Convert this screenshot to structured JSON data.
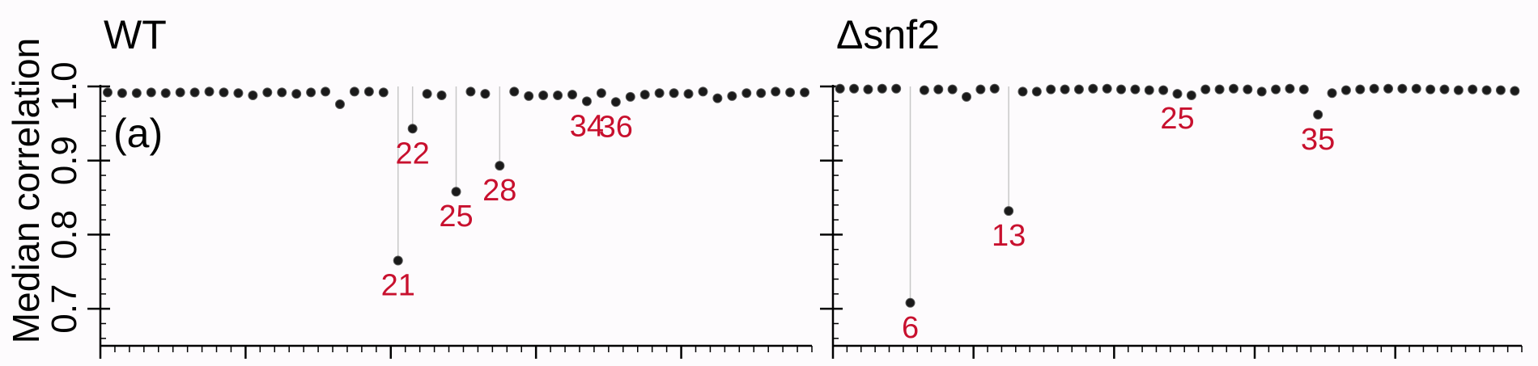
{
  "chart_data": {
    "type": "scatter",
    "ylabel": "Median correlation",
    "ylim": [
      0.65,
      1.0
    ],
    "yticks": [
      0.7,
      0.8,
      0.9,
      1.0
    ],
    "ytick_labels": [
      "0.7",
      "0.8",
      "0.9",
      "1.0"
    ],
    "grid": false,
    "colors": {
      "marker": "#1a1a1a",
      "outlier_label": "#c8102e",
      "drop_line": "#c8c8c8"
    },
    "panels": [
      {
        "title": "WT",
        "panel_letter": "(a)",
        "x_count": 49,
        "values": [
          0.992,
          0.991,
          0.991,
          0.992,
          0.991,
          0.992,
          0.992,
          0.993,
          0.992,
          0.991,
          0.988,
          0.992,
          0.992,
          0.99,
          0.992,
          0.993,
          0.976,
          0.993,
          0.993,
          0.992,
          0.765,
          0.943,
          0.99,
          0.988,
          0.858,
          0.993,
          0.99,
          0.893,
          0.993,
          0.987,
          0.988,
          0.988,
          0.989,
          0.98,
          0.991,
          0.979,
          0.986,
          0.989,
          0.991,
          0.991,
          0.99,
          0.993,
          0.984,
          0.987,
          0.991,
          0.991,
          0.993,
          0.992,
          0.992
        ],
        "labeled_points": [
          {
            "x": 21,
            "label": "21"
          },
          {
            "x": 22,
            "label": "22"
          },
          {
            "x": 25,
            "label": "25"
          },
          {
            "x": 28,
            "label": "28"
          },
          {
            "x": 34,
            "label": "34"
          },
          {
            "x": 36,
            "label": "36"
          }
        ]
      },
      {
        "title": "Δsnf2",
        "panel_letter": "",
        "x_count": 49,
        "values": [
          0.997,
          0.997,
          0.996,
          0.997,
          0.997,
          0.708,
          0.995,
          0.996,
          0.996,
          0.986,
          0.996,
          0.997,
          0.832,
          0.993,
          0.993,
          0.996,
          0.996,
          0.996,
          0.997,
          0.997,
          0.996,
          0.996,
          0.995,
          0.995,
          0.99,
          0.988,
          0.996,
          0.996,
          0.997,
          0.996,
          0.993,
          0.996,
          0.997,
          0.996,
          0.962,
          0.991,
          0.995,
          0.996,
          0.997,
          0.997,
          0.997,
          0.997,
          0.996,
          0.996,
          0.995,
          0.996,
          0.995,
          0.995,
          0.994
        ],
        "labeled_points": [
          {
            "x": 6,
            "label": "6"
          },
          {
            "x": 13,
            "label": "13"
          },
          {
            "x": 25,
            "label": "25"
          },
          {
            "x": 35,
            "label": "35"
          }
        ]
      }
    ]
  }
}
